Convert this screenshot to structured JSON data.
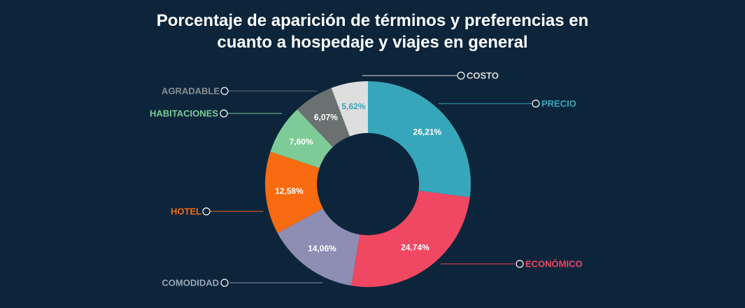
{
  "title_line1": "Porcentaje de aparición de términos y preferencias en",
  "title_line2": "cuanto a hospedaje y viajes en general",
  "chart_data": {
    "type": "pie",
    "subtype": "donut",
    "title": "Porcentaje de aparición de términos y preferencias en cuanto a hospedaje y viajes en general",
    "slices": [
      {
        "label": "PRECIO",
        "value": 26.21,
        "value_text": "26,21%",
        "color": "#38a6ba",
        "label_color": "#38a6ba",
        "value_color": "#ffffff"
      },
      {
        "label": "ECONÓMICO",
        "value": 24.74,
        "value_text": "24,74%",
        "color": "#f04762",
        "label_color": "#f04762",
        "value_color": "#ffffff"
      },
      {
        "label": "COMODIDAD",
        "value": 14.06,
        "value_text": "14,06%",
        "color": "#8e8db4",
        "label_color": "#9aa6b5",
        "value_color": "#ffffff"
      },
      {
        "label": "HOTEL",
        "value": 12.58,
        "value_text": "12,58%",
        "color": "#f86b10",
        "label_color": "#f86b10",
        "value_color": "#ffffff"
      },
      {
        "label": "HABITACIONES",
        "value": 7.6,
        "value_text": "7,60%",
        "color": "#7dcb97",
        "label_color": "#7dcb97",
        "value_color": "#ffffff"
      },
      {
        "label": "AGRADABLE",
        "value": 6.07,
        "value_text": "6,07%",
        "color": "#6b7070",
        "label_color": "#8a8f94",
        "value_color": "#ffffff"
      },
      {
        "label": "COSTO",
        "value": 5.62,
        "value_text": "5,62%",
        "color": "#dedede",
        "label_color": "#d9d9d9",
        "value_color": "#38a6ba"
      }
    ]
  }
}
